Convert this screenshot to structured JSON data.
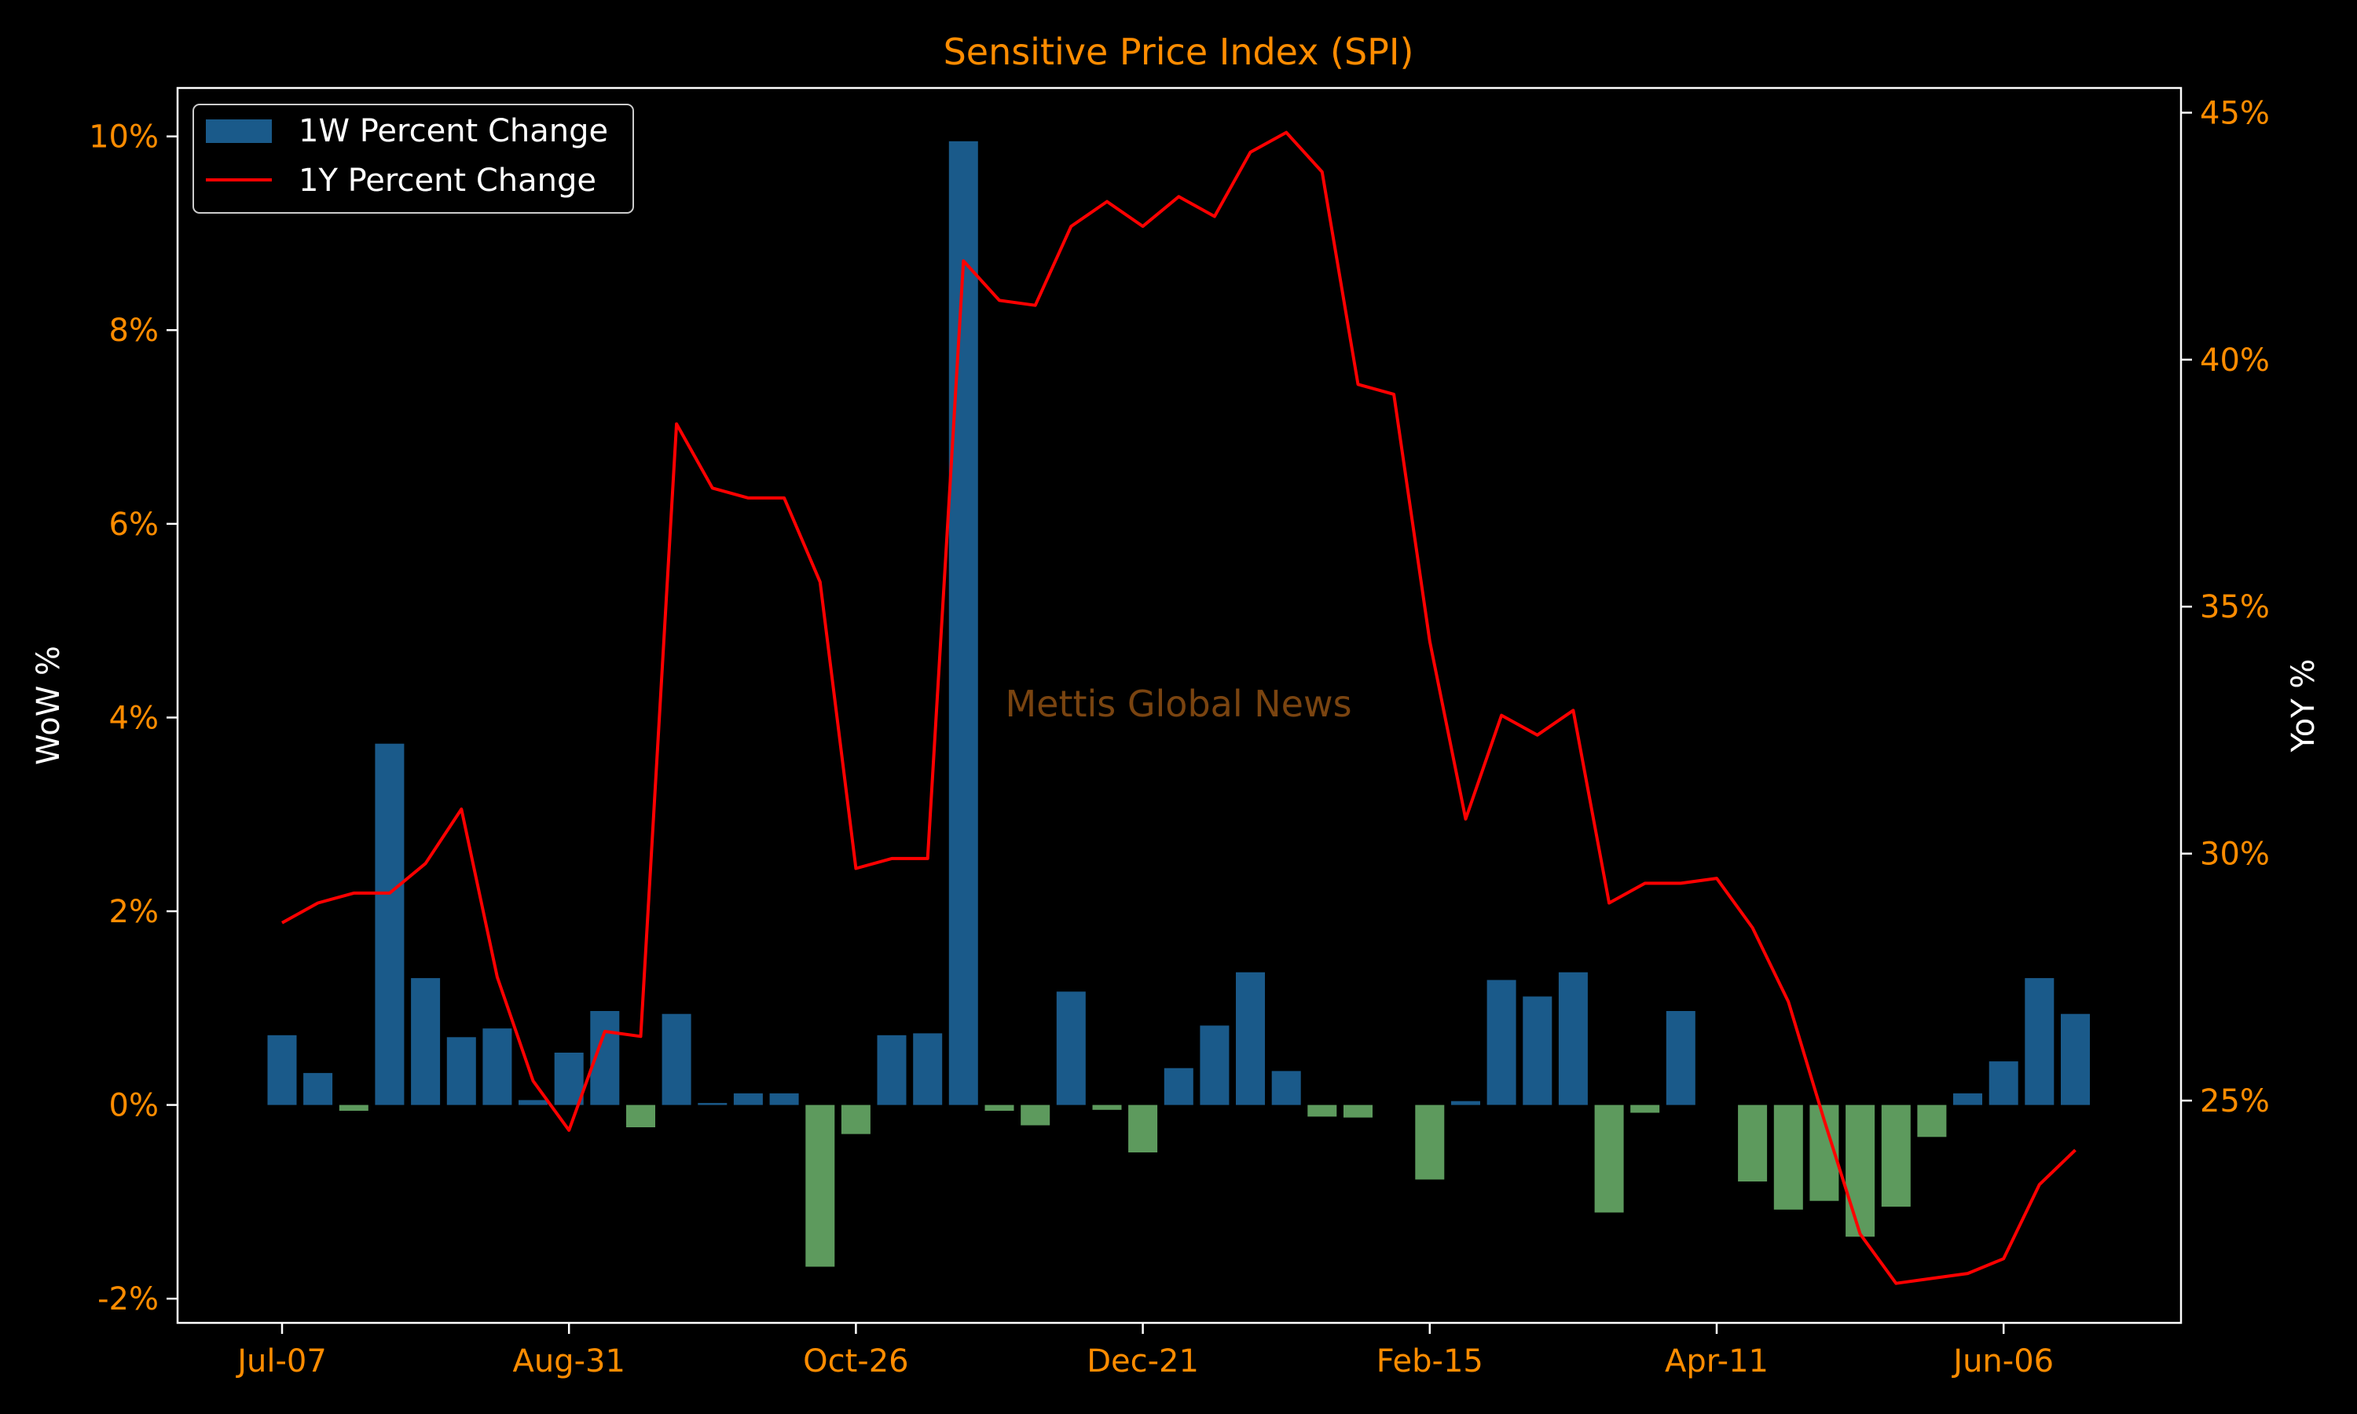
{
  "chart_data": {
    "type": "bar+line",
    "title": "Sensitive Price Index (SPI)",
    "watermark": "Mettis Global News",
    "ylabel_left": "WoW %",
    "ylabel_right": "YoY %",
    "ylim_left": [
      -2.25,
      10.5
    ],
    "ylim_right": [
      20.5,
      45.5
    ],
    "yticks_left": [
      -2,
      0,
      2,
      4,
      6,
      8,
      10
    ],
    "yticks_left_labels": [
      "-2%",
      "0%",
      "2%",
      "4%",
      "6%",
      "8%",
      "10%"
    ],
    "yticks_right": [
      25,
      30,
      35,
      40,
      45
    ],
    "yticks_right_labels": [
      "25%",
      "30%",
      "35%",
      "40%",
      "45%"
    ],
    "xtick_indices": [
      0,
      8,
      16,
      24,
      32,
      40,
      48
    ],
    "xtick_labels": [
      "Jul-07",
      "Aug-31",
      "Oct-26",
      "Dec-21",
      "Feb-15",
      "Apr-11",
      "Jun-06"
    ],
    "legend_position": "top-left",
    "series": [
      {
        "name": "1W Percent Change",
        "kind": "bar",
        "color": "#1a5a8a",
        "negative_color": "#5d9a5d",
        "values": [
          0.72,
          0.33,
          -0.06,
          3.73,
          1.31,
          0.7,
          0.79,
          0.05,
          0.54,
          0.97,
          -0.23,
          0.94,
          0.02,
          0.12,
          0.12,
          -1.67,
          -0.3,
          0.72,
          0.74,
          9.95,
          -0.06,
          -0.21,
          1.17,
          -0.05,
          -0.49,
          0.38,
          0.82,
          1.37,
          0.35,
          -0.12,
          -0.13,
          0.0,
          -0.77,
          0.04,
          1.29,
          1.12,
          1.37,
          -1.11,
          -0.08,
          0.97,
          0.0,
          -0.79,
          -1.08,
          -0.99,
          -1.36,
          -1.05,
          -0.33,
          0.12,
          0.45,
          1.31,
          0.94
        ]
      },
      {
        "name": "1Y Percent Change",
        "kind": "line",
        "color": "#ff0000",
        "values": [
          28.6,
          29.0,
          29.2,
          29.2,
          29.8,
          30.9,
          27.5,
          25.4,
          24.4,
          26.4,
          26.3,
          38.7,
          37.4,
          37.2,
          37.2,
          35.5,
          29.7,
          29.9,
          29.9,
          42.0,
          41.2,
          41.1,
          42.7,
          43.2,
          42.7,
          43.3,
          42.9,
          44.2,
          44.6,
          43.8,
          39.5,
          39.3,
          34.3,
          30.7,
          32.8,
          32.4,
          32.9,
          29.0,
          29.4,
          29.4,
          29.5,
          28.5,
          27.0,
          24.6,
          22.3,
          21.3,
          21.4,
          21.5,
          21.8,
          23.3,
          24.0
        ]
      }
    ]
  },
  "colors": {
    "background": "#000000",
    "axis": "#ffffff",
    "tick_labels": "#ff8c00",
    "title": "#ff8c00",
    "axis_labels": "#ffffff",
    "watermark": "#7a4410",
    "legend_text": "#ffffff"
  }
}
